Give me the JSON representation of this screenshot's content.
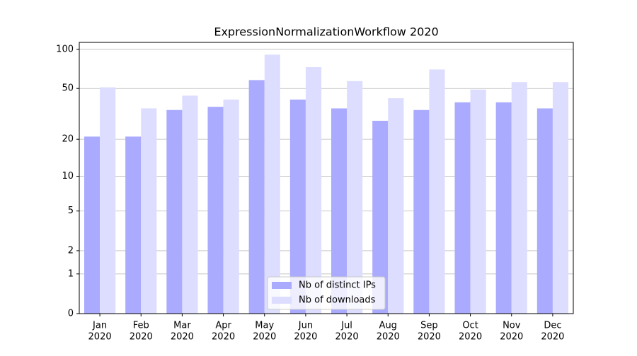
{
  "chart_data": {
    "type": "bar",
    "title": "ExpressionNormalizationWorkflow 2020",
    "categories": [
      [
        "Jan",
        "2020"
      ],
      [
        "Feb",
        "2020"
      ],
      [
        "Mar",
        "2020"
      ],
      [
        "Apr",
        "2020"
      ],
      [
        "May",
        "2020"
      ],
      [
        "Jun",
        "2020"
      ],
      [
        "Jul",
        "2020"
      ],
      [
        "Aug",
        "2020"
      ],
      [
        "Sep",
        "2020"
      ],
      [
        "Oct",
        "2020"
      ],
      [
        "Nov",
        "2020"
      ],
      [
        "Dec",
        "2020"
      ]
    ],
    "series": [
      {
        "name": "Nb of distinct IPs",
        "color": "#aaaaff",
        "values": [
          21,
          21,
          34,
          36,
          58,
          41,
          35,
          28,
          34,
          39,
          39,
          35
        ]
      },
      {
        "name": "Nb of downloads",
        "color": "#ddddff",
        "values": [
          51,
          35,
          44,
          41,
          91,
          73,
          57,
          42,
          70,
          49,
          56,
          56
        ]
      }
    ],
    "yscale": "log1p",
    "ylim": [
      0,
      113
    ],
    "yticks": [
      0,
      1,
      2,
      5,
      10,
      20,
      50,
      100
    ],
    "grid": true,
    "legend": "lower center"
  }
}
